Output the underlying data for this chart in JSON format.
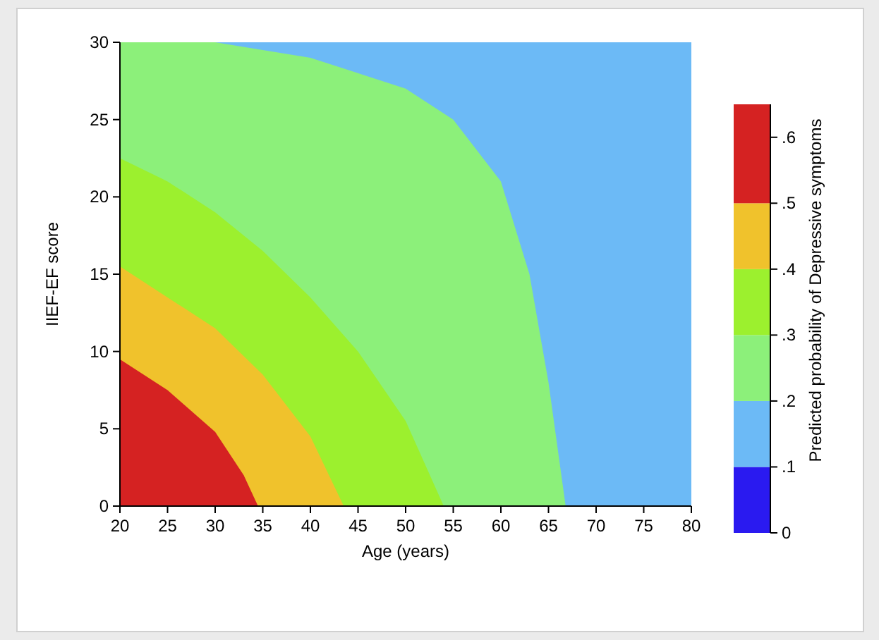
{
  "chart_data": {
    "type": "area",
    "xlabel": "Age (years)",
    "ylabel": "IIEF-EF score",
    "clabel": "Predicted probability of Depressive symptoms",
    "xlim": [
      20,
      80
    ],
    "ylim": [
      0,
      30
    ],
    "xticks": [
      20,
      25,
      30,
      35,
      40,
      45,
      50,
      55,
      60,
      65,
      70,
      75,
      80
    ],
    "yticks": [
      0,
      5,
      10,
      15,
      20,
      25,
      30
    ],
    "clim": [
      0,
      0.65
    ],
    "cticks": [
      0,
      {
        "value": 0.1,
        "label": ".1"
      },
      {
        "value": 0.2,
        "label": ".2"
      },
      {
        "value": 0.3,
        "label": ".3"
      },
      {
        "value": 0.4,
        "label": ".4"
      },
      {
        "value": 0.5,
        "label": ".5"
      },
      {
        "value": 0.6,
        "label": ".6"
      }
    ],
    "colors": [
      "#2a1af0",
      "#6cbaf6",
      "#8cf07a",
      "#9cf02e",
      "#f0c22c",
      "#d52222"
    ],
    "series": [
      {
        "color": "#6cbaf6",
        "x": [
          20,
          80
        ],
        "values": [
          30,
          30
        ]
      },
      {
        "color": "#8cf07a",
        "x": [
          20,
          30,
          35,
          40,
          45,
          50,
          55,
          60,
          63,
          65,
          66.8
        ],
        "values": [
          30,
          30,
          29.5,
          29,
          28,
          27,
          25,
          21,
          15,
          8,
          0
        ]
      },
      {
        "color": "#9cf02e",
        "x": [
          20,
          25,
          30,
          35,
          40,
          45,
          50,
          54
        ],
        "values": [
          22.5,
          21,
          19,
          16.5,
          13.5,
          10,
          5.5,
          0
        ]
      },
      {
        "color": "#f0c22c",
        "x": [
          20,
          25,
          30,
          35,
          40,
          43.5
        ],
        "values": [
          15.5,
          13.5,
          11.5,
          8.5,
          4.5,
          0
        ]
      },
      {
        "color": "#d52222",
        "x": [
          20,
          25,
          30,
          33,
          34.5
        ],
        "values": [
          9.5,
          7.5,
          4.8,
          2,
          0
        ]
      }
    ]
  }
}
